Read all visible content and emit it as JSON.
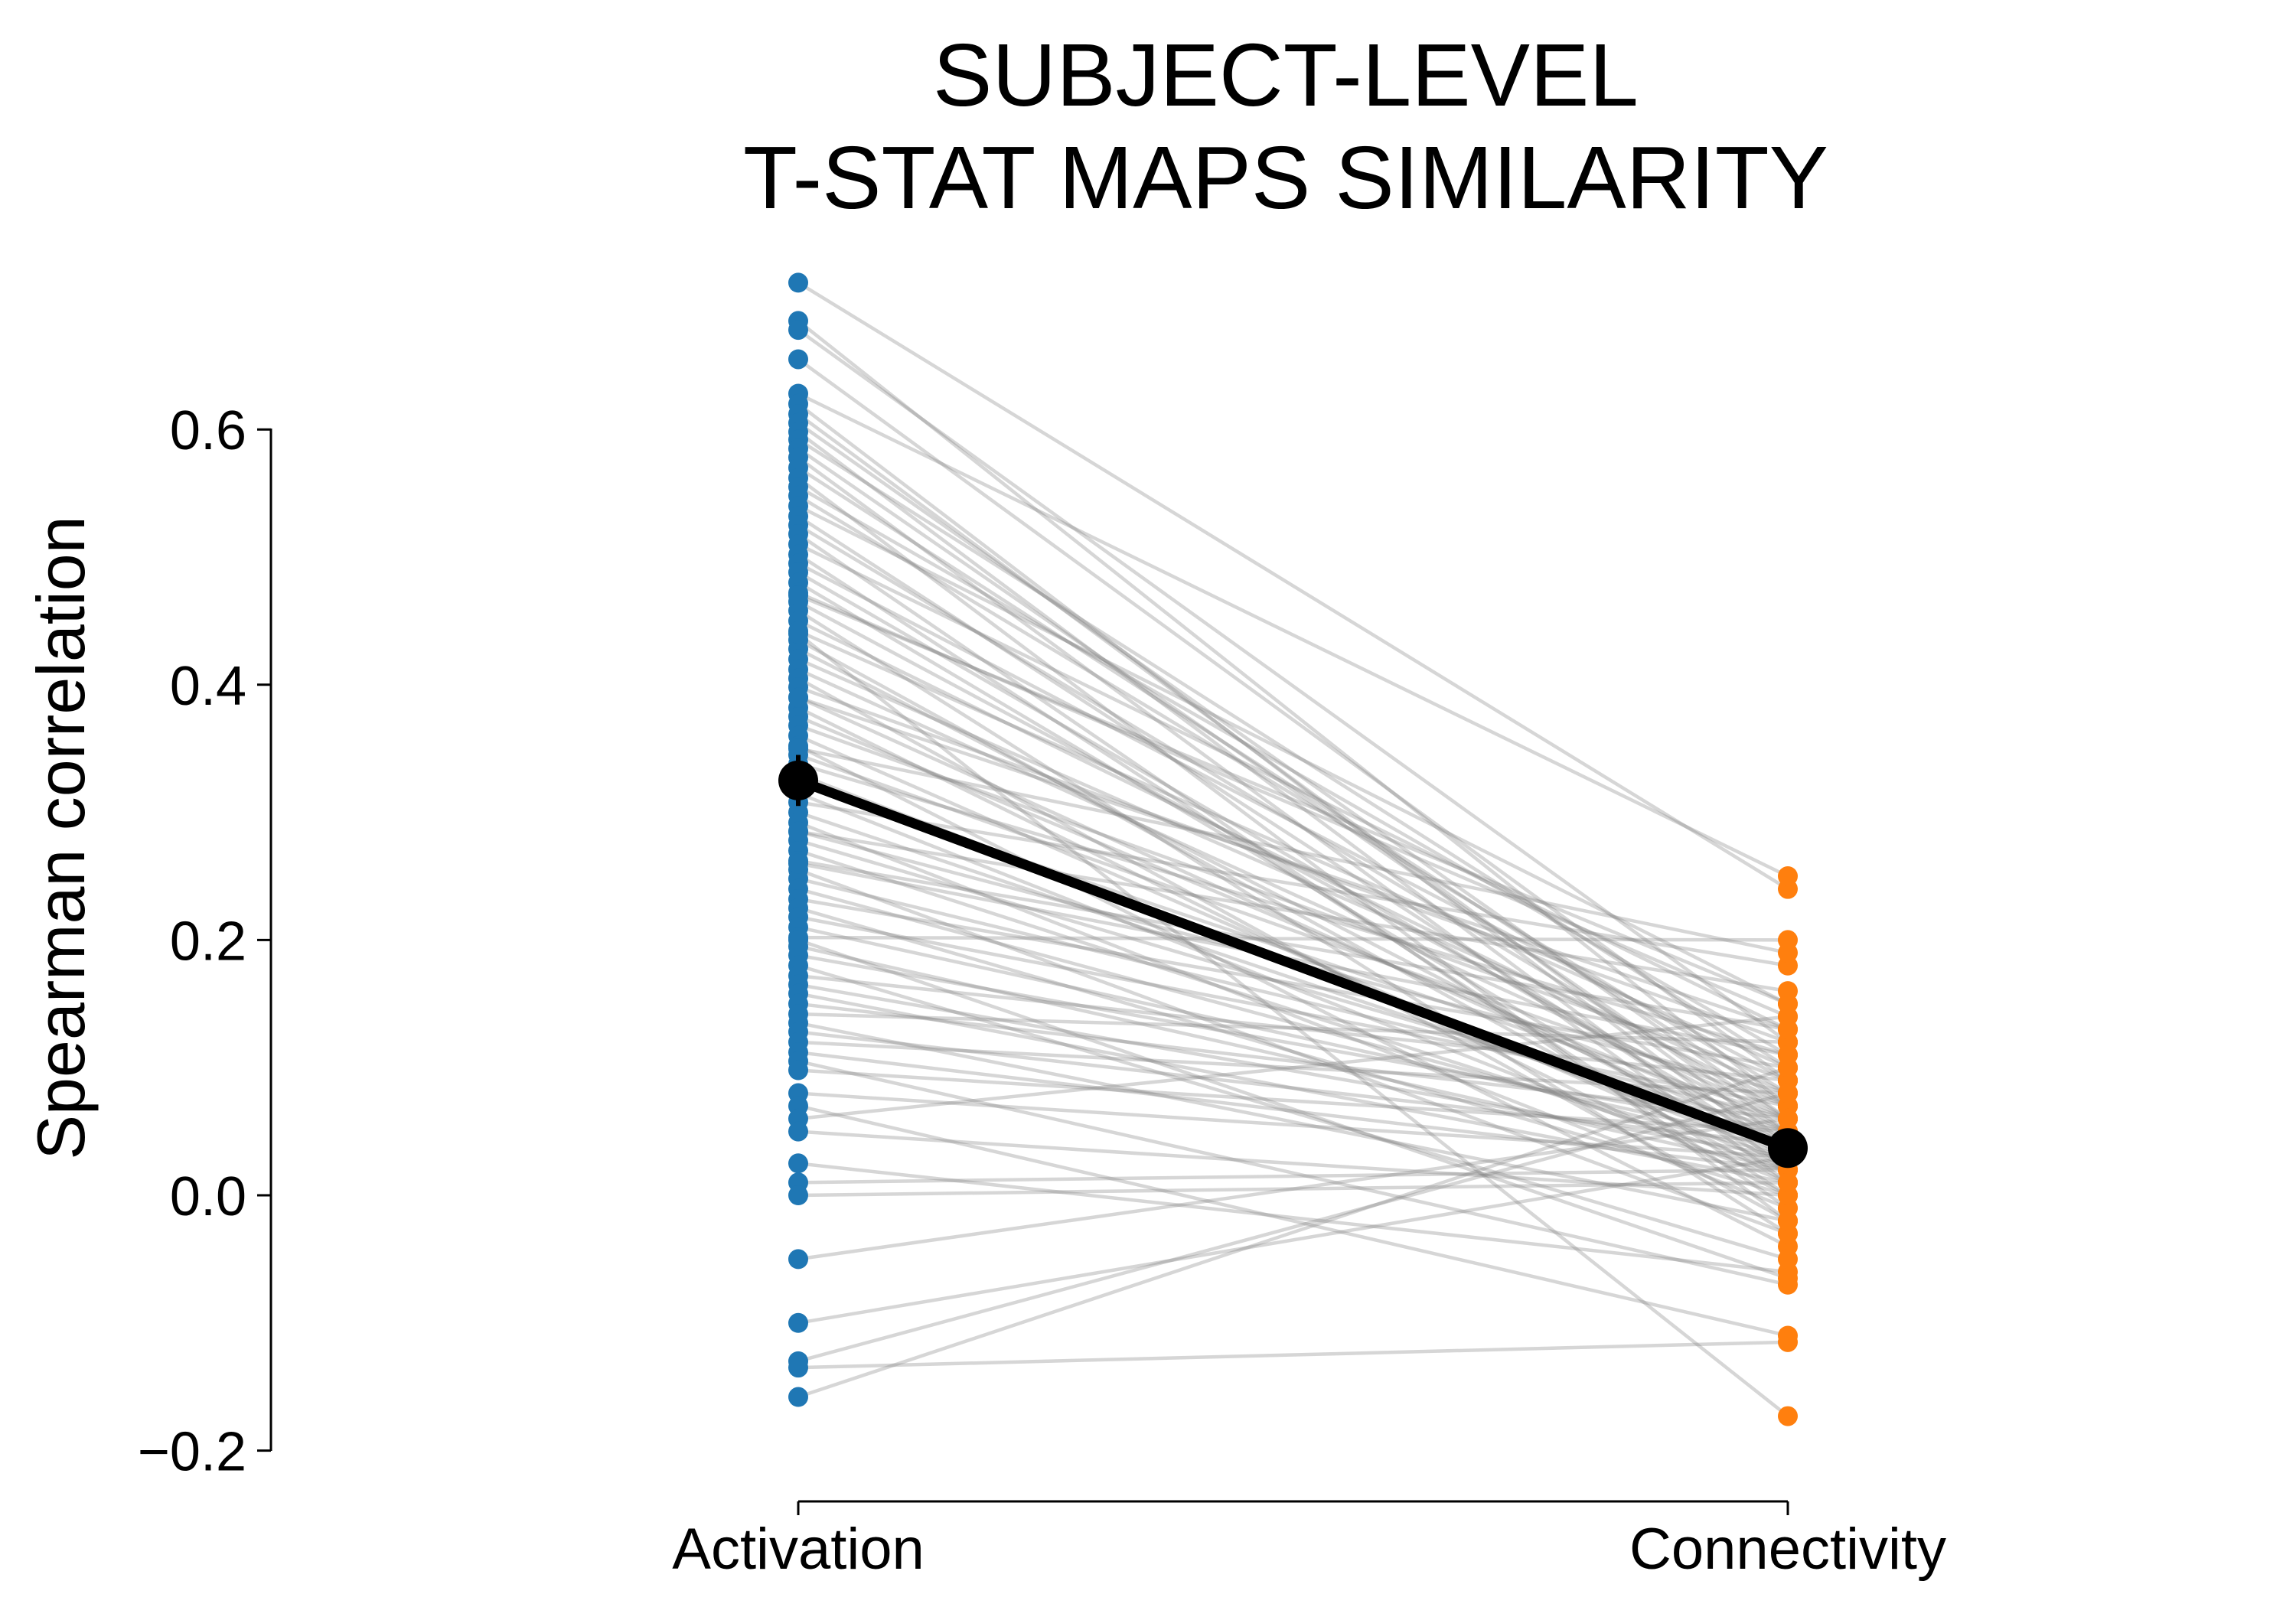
{
  "chart_data": {
    "type": "scatter",
    "title_lines": [
      "SUBJECT-LEVEL",
      "T-STAT MAPS SIMILARITY"
    ],
    "xlabel": "",
    "ylabel": "Spearman correlation",
    "categories": [
      "Activation",
      "Connectivity"
    ],
    "ylim": [
      -0.2,
      0.6
    ],
    "y_ticks": [
      -0.2,
      0.0,
      0.2,
      0.4,
      0.6
    ],
    "y_tick_labels": [
      "−0.2",
      "0.0",
      "0.2",
      "0.4",
      "0.6"
    ],
    "grid": false,
    "legend": "none",
    "colors": {
      "Activation": "#1f77b4",
      "Connectivity": "#ff7f0e",
      "paired_lines": "#808080",
      "mean": "#000000"
    },
    "mean": {
      "values": [
        0.325,
        0.037
      ],
      "error": [
        0.02,
        0.01
      ]
    },
    "paired": [
      [
        0.715,
        0.24
      ],
      [
        0.685,
        0.07
      ],
      [
        0.678,
        0.12
      ],
      [
        0.655,
        0.09
      ],
      [
        0.628,
        0.25
      ],
      [
        0.62,
        0.03
      ],
      [
        0.612,
        0.04
      ],
      [
        0.605,
        0.06
      ],
      [
        0.598,
        0.02
      ],
      [
        0.592,
        0.1
      ],
      [
        0.585,
        0.05
      ],
      [
        0.578,
        0.01
      ],
      [
        0.57,
        0.07
      ],
      [
        0.562,
        -0.02
      ],
      [
        0.555,
        0.11
      ],
      [
        0.548,
        0.08
      ],
      [
        0.54,
        0.15
      ],
      [
        0.532,
        0.03
      ],
      [
        0.525,
        0.06
      ],
      [
        0.518,
        -0.01
      ],
      [
        0.51,
        0.13
      ],
      [
        0.502,
        0.0
      ],
      [
        0.495,
        0.09
      ],
      [
        0.488,
        0.04
      ],
      [
        0.48,
        0.02
      ],
      [
        0.472,
        0.14
      ],
      [
        0.465,
        0.05
      ],
      [
        0.458,
        -0.03
      ],
      [
        0.45,
        0.07
      ],
      [
        0.442,
        0.1
      ],
      [
        0.435,
        0.01
      ],
      [
        0.428,
        0.03
      ],
      [
        0.42,
        0.08
      ],
      [
        0.412,
        0.06
      ],
      [
        0.405,
        -0.02
      ],
      [
        0.398,
        0.12
      ],
      [
        0.39,
        0.04
      ],
      [
        0.382,
        0.0
      ],
      [
        0.375,
        0.05
      ],
      [
        0.368,
        0.09
      ],
      [
        0.36,
        0.02
      ],
      [
        0.352,
        -0.04
      ],
      [
        0.345,
        0.07
      ],
      [
        0.338,
        0.11
      ],
      [
        0.33,
        0.03
      ],
      [
        0.322,
        0.06
      ],
      [
        0.315,
        0.01
      ],
      [
        0.308,
        0.18
      ],
      [
        0.3,
        0.04
      ],
      [
        0.292,
        -0.01
      ],
      [
        0.285,
        0.08
      ],
      [
        0.278,
        0.05
      ],
      [
        0.27,
        0.02
      ],
      [
        0.262,
        0.13
      ],
      [
        0.255,
        -0.03
      ],
      [
        0.248,
        0.06
      ],
      [
        0.24,
        0.03
      ],
      [
        0.232,
        0.1
      ],
      [
        0.225,
        0.0
      ],
      [
        0.218,
        0.07
      ],
      [
        0.21,
        0.04
      ],
      [
        0.202,
        0.2
      ],
      [
        0.195,
        0.02
      ],
      [
        0.188,
        0.05
      ],
      [
        0.18,
        -0.05
      ],
      [
        0.172,
        0.09
      ],
      [
        0.165,
        0.03
      ],
      [
        0.158,
        0.01
      ],
      [
        0.15,
        0.06
      ],
      [
        0.142,
        0.12
      ],
      [
        0.135,
        -0.02
      ],
      [
        0.128,
        0.04
      ],
      [
        0.12,
        0.08
      ],
      [
        0.112,
        0.02
      ],
      [
        0.105,
        -0.07
      ],
      [
        0.098,
        0.05
      ],
      [
        0.08,
        0.03
      ],
      [
        0.07,
        -0.11
      ],
      [
        0.06,
        0.14
      ],
      [
        0.05,
        0.0
      ],
      [
        0.025,
        -0.06
      ],
      [
        0.01,
        0.02
      ],
      [
        0.0,
        0.01
      ],
      [
        -0.05,
        0.06
      ],
      [
        -0.1,
        0.03
      ],
      [
        -0.13,
        0.08
      ],
      [
        -0.135,
        -0.115
      ],
      [
        -0.158,
        0.1
      ],
      [
        0.44,
        -0.173
      ],
      [
        0.35,
        0.19
      ],
      [
        0.285,
        0.16
      ],
      [
        0.2,
        -0.065
      ],
      [
        0.47,
        0.15
      ],
      [
        0.39,
        0.13
      ],
      [
        0.26,
        0.11
      ]
    ]
  }
}
